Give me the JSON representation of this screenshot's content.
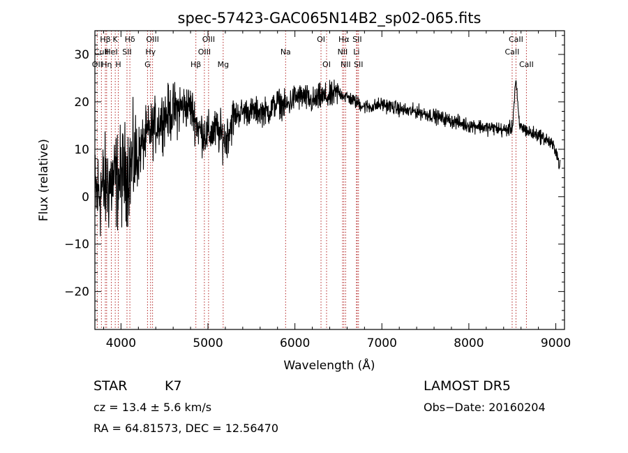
{
  "chart_data": {
    "type": "line",
    "title": "spec-57423-GAC065N14B2_sp02-065.fits",
    "xlabel": "Wavelength (Å)",
    "ylabel": "Flux (relative)",
    "xlim": [
      3700,
      9100
    ],
    "ylim": [
      -28,
      35
    ],
    "x_ticks": [
      4000,
      5000,
      6000,
      7000,
      8000,
      9000
    ],
    "x_tick_labels": [
      "4000",
      "5000",
      "6000",
      "7000",
      "8000",
      "9000"
    ],
    "y_ticks": [
      -20,
      -10,
      0,
      10,
      20,
      30
    ],
    "y_tick_labels": [
      "−20",
      "−10",
      "0",
      "10",
      "20",
      "30"
    ],
    "spectrum_color": "#000000",
    "line_marker_color": "#b22222",
    "spectrum_anchors": [
      {
        "x": 3700,
        "y": 0
      },
      {
        "x": 3800,
        "y": 2
      },
      {
        "x": 3900,
        "y": 3
      },
      {
        "x": 4000,
        "y": 4
      },
      {
        "x": 4100,
        "y": 6
      },
      {
        "x": 4200,
        "y": 9
      },
      {
        "x": 4300,
        "y": 13
      },
      {
        "x": 4400,
        "y": 15
      },
      {
        "x": 4500,
        "y": 17
      },
      {
        "x": 4600,
        "y": 18
      },
      {
        "x": 4700,
        "y": 19
      },
      {
        "x": 4800,
        "y": 19
      },
      {
        "x": 4900,
        "y": 14
      },
      {
        "x": 5000,
        "y": 13
      },
      {
        "x": 5100,
        "y": 14
      },
      {
        "x": 5200,
        "y": 12
      },
      {
        "x": 5300,
        "y": 17
      },
      {
        "x": 5400,
        "y": 18
      },
      {
        "x": 5500,
        "y": 18
      },
      {
        "x": 5600,
        "y": 18
      },
      {
        "x": 5700,
        "y": 18
      },
      {
        "x": 5800,
        "y": 20
      },
      {
        "x": 5900,
        "y": 19
      },
      {
        "x": 6000,
        "y": 21
      },
      {
        "x": 6100,
        "y": 21
      },
      {
        "x": 6200,
        "y": 20
      },
      {
        "x": 6300,
        "y": 21
      },
      {
        "x": 6400,
        "y": 21
      },
      {
        "x": 6500,
        "y": 22
      },
      {
        "x": 6600,
        "y": 21
      },
      {
        "x": 6700,
        "y": 20
      },
      {
        "x": 6800,
        "y": 19
      },
      {
        "x": 6900,
        "y": 19
      },
      {
        "x": 7000,
        "y": 19.5
      },
      {
        "x": 7100,
        "y": 19
      },
      {
        "x": 7200,
        "y": 18.5
      },
      {
        "x": 7300,
        "y": 18
      },
      {
        "x": 7400,
        "y": 18
      },
      {
        "x": 7500,
        "y": 17.5
      },
      {
        "x": 7600,
        "y": 17
      },
      {
        "x": 7700,
        "y": 16.5
      },
      {
        "x": 7800,
        "y": 16
      },
      {
        "x": 7900,
        "y": 15.5
      },
      {
        "x": 8000,
        "y": 15
      },
      {
        "x": 8100,
        "y": 15
      },
      {
        "x": 8200,
        "y": 14.5
      },
      {
        "x": 8300,
        "y": 14.5
      },
      {
        "x": 8400,
        "y": 14
      },
      {
        "x": 8500,
        "y": 14.5
      },
      {
        "x": 8540,
        "y": 25
      },
      {
        "x": 8580,
        "y": 15
      },
      {
        "x": 8700,
        "y": 13.5
      },
      {
        "x": 8800,
        "y": 13
      },
      {
        "x": 8900,
        "y": 12
      },
      {
        "x": 9000,
        "y": 10
      },
      {
        "x": 9050,
        "y": 6
      }
    ],
    "spectral_lines": [
      {
        "label": "Hβ",
        "x": 3820,
        "row": 0
      },
      {
        "label": "K",
        "x": 3934,
        "row": 0
      },
      {
        "label": "Hδ",
        "x": 4102,
        "row": 0
      },
      {
        "label": "OIII",
        "x": 4363,
        "row": 0
      },
      {
        "label": "OIII",
        "x": 5007,
        "row": 0
      },
      {
        "label": "OI",
        "x": 6300,
        "row": 0
      },
      {
        "label": "Hα",
        "x": 6563,
        "row": 0
      },
      {
        "label": "SII",
        "x": 6716,
        "row": 0
      },
      {
        "label": "CaII",
        "x": 8542,
        "row": 0
      },
      {
        "label": "CuII",
        "x": 3775,
        "row": 1
      },
      {
        "label": "HeI",
        "x": 3889,
        "row": 1
      },
      {
        "label": "SII",
        "x": 4069,
        "row": 1
      },
      {
        "label": "Hγ",
        "x": 4340,
        "row": 1
      },
      {
        "label": "OIII",
        "x": 4959,
        "row": 1
      },
      {
        "label": "Na",
        "x": 5893,
        "row": 1
      },
      {
        "label": "NII",
        "x": 6548,
        "row": 1
      },
      {
        "label": "Li",
        "x": 6708,
        "row": 1
      },
      {
        "label": "CaII",
        "x": 8498,
        "row": 1
      },
      {
        "label": "OII",
        "x": 3727,
        "row": 2
      },
      {
        "label": "Hη",
        "x": 3835,
        "row": 2
      },
      {
        "label": "H",
        "x": 3969,
        "row": 2
      },
      {
        "label": "G",
        "x": 4305,
        "row": 2
      },
      {
        "label": "Hβ",
        "x": 4861,
        "row": 2
      },
      {
        "label": "Mg",
        "x": 5175,
        "row": 2
      },
      {
        "label": "OI",
        "x": 6364,
        "row": 2
      },
      {
        "label": "NII",
        "x": 6583,
        "row": 2
      },
      {
        "label": "SII",
        "x": 6731,
        "row": 2
      },
      {
        "label": "CaII",
        "x": 8662,
        "row": 2
      }
    ]
  },
  "info": {
    "class": "STAR",
    "subclass": "K7",
    "survey": "LAMOST DR5",
    "cz": "cz = 13.4 ± 5.6 km/s",
    "obs_date": "Obs−Date: 20160204",
    "radec": "RA =  64.81573, DEC =  12.56470"
  }
}
